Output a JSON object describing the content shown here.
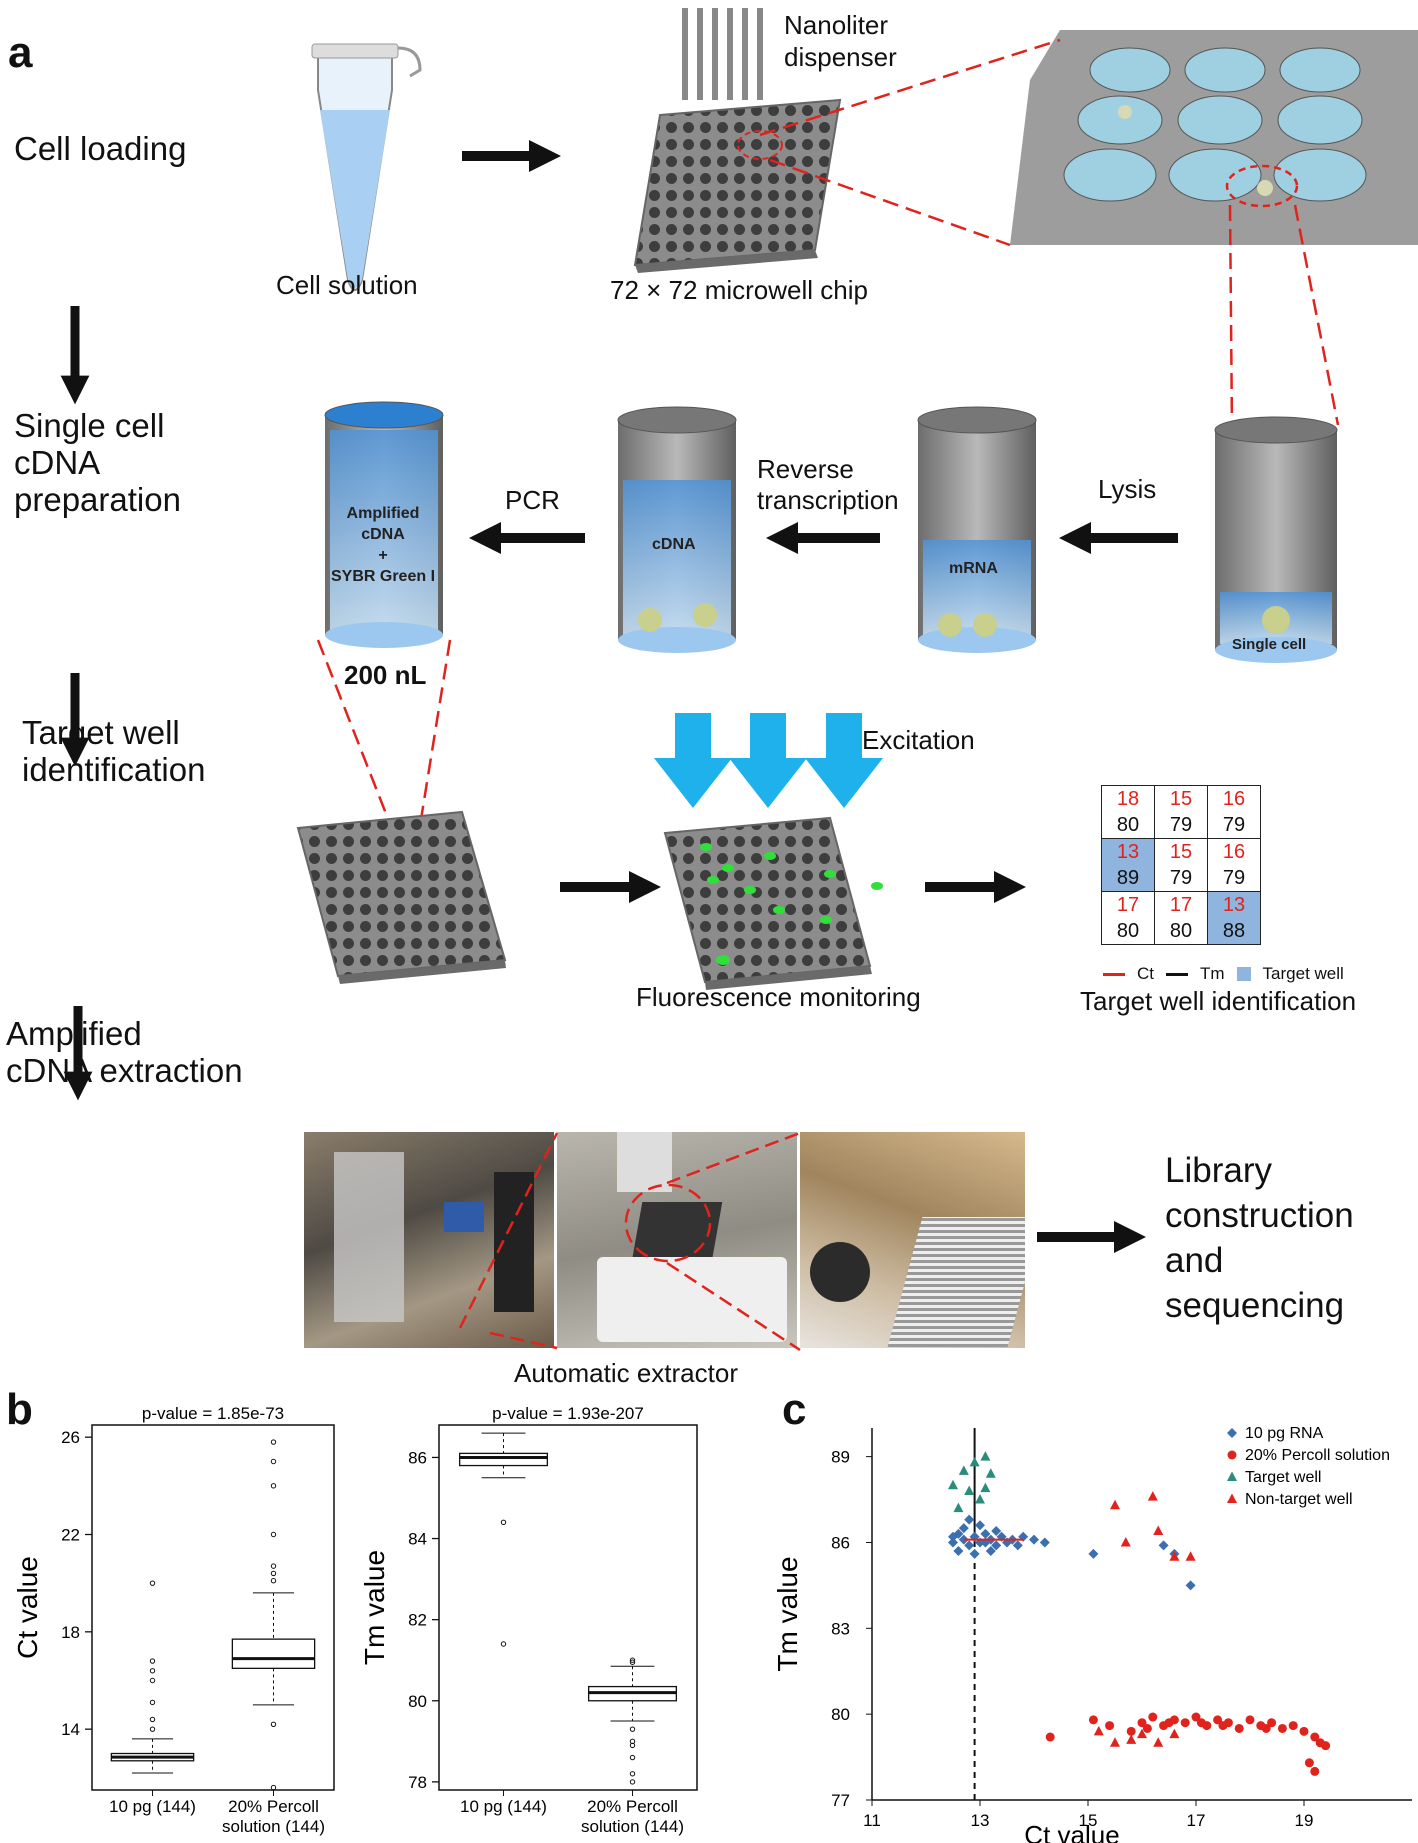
{
  "panels": {
    "a": "a",
    "b": "b",
    "c": "c"
  },
  "steps": {
    "cell_loading": "Cell loading",
    "single_cell_l1": "Single cell",
    "single_cell_l2": "cDNA",
    "single_cell_l3": "preparation",
    "target_well_l1": "Target well",
    "target_well_l2": "identification",
    "extraction_l1": "Amplified",
    "extraction_l2": "cDNA extraction"
  },
  "labels": {
    "cell_solution": "Cell solution",
    "dispenser_l1": "Nanoliter",
    "dispenser_l2": "dispenser",
    "chip": "72 × 72 microwell chip",
    "pcr": "PCR",
    "rt_l1": "Reverse",
    "rt_l2": "transcription",
    "lysis": "Lysis",
    "amplified_l1": "Amplified",
    "amplified_l2": "cDNA",
    "amplified_l3": "+",
    "amplified_l4": "SYBR Green I",
    "cdna": "cDNA",
    "mrna": "mRNA",
    "single_cell": "Single cell",
    "volume": "200 nL",
    "excitation": "Excitation",
    "fluorescence": "Fluorescence monitoring",
    "target_id": "Target well identification",
    "legend_ct": "Ct",
    "legend_tm": "Tm",
    "legend_target": "Target well",
    "extractor": "Automatic extractor",
    "library_l1": "Library",
    "library_l2": "construction",
    "library_l3": "and",
    "library_l4": "sequencing"
  },
  "well_table": [
    [
      {
        "ct": "18",
        "tm": "80",
        "target": false
      },
      {
        "ct": "15",
        "tm": "79",
        "target": false
      },
      {
        "ct": "16",
        "tm": "79",
        "target": false
      }
    ],
    [
      {
        "ct": "13",
        "tm": "89",
        "target": true
      },
      {
        "ct": "15",
        "tm": "79",
        "target": false
      },
      {
        "ct": "16",
        "tm": "79",
        "target": false
      }
    ],
    [
      {
        "ct": "17",
        "tm": "80",
        "target": false
      },
      {
        "ct": "17",
        "tm": "80",
        "target": false
      },
      {
        "ct": "13",
        "tm": "88",
        "target": true
      }
    ]
  ],
  "colors": {
    "ct": "#e0231c",
    "target": "#8fb4de",
    "arrow_blue": "#1fb1ec",
    "rna": "#3c6fb0",
    "percoll": "#e0231c",
    "target_well": "#2a8c7a",
    "nontarget": "#e0231c"
  },
  "chart_data": [
    {
      "type": "box",
      "title": "p-value = 1.85e-73",
      "ylabel": "Ct value",
      "categories": [
        "10 pg (144)",
        "20% Percoll solution (144)"
      ],
      "category_lines": [
        [
          "10 pg (144)"
        ],
        [
          "20% Percoll",
          "solution (144)"
        ]
      ],
      "ylim": [
        11.5,
        26.5
      ],
      "yticks": [
        14,
        18,
        22,
        26
      ],
      "boxes": [
        {
          "q1": 12.7,
          "median": 12.85,
          "q3": 13.0,
          "whisker_low": 12.2,
          "whisker_high": 13.6,
          "outliers": [
            20.0,
            16.8,
            16.4,
            16.0,
            15.1,
            14.4,
            14.0
          ]
        },
        {
          "q1": 16.5,
          "median": 16.9,
          "q3": 17.7,
          "whisker_low": 15.0,
          "whisker_high": 19.6,
          "outliers": [
            25.8,
            25.0,
            24.0,
            22.0,
            20.7,
            20.4,
            20.1,
            14.2,
            11.6
          ]
        }
      ]
    },
    {
      "type": "box",
      "title": "p-value = 1.93e-207",
      "ylabel": "Tm value",
      "categories": [
        "10 pg (144)",
        "20% Percoll solution (144)"
      ],
      "category_lines": [
        [
          "10 pg (144)"
        ],
        [
          "20% Percoll",
          "solution (144)"
        ]
      ],
      "ylim": [
        77.8,
        86.8
      ],
      "yticks": [
        78,
        80,
        82,
        84,
        86
      ],
      "boxes": [
        {
          "q1": 85.8,
          "median": 86.0,
          "q3": 86.1,
          "whisker_low": 85.5,
          "whisker_high": 86.6,
          "outliers": [
            84.4,
            81.4
          ]
        },
        {
          "q1": 80.0,
          "median": 80.2,
          "q3": 80.35,
          "whisker_low": 79.5,
          "whisker_high": 80.85,
          "outliers": [
            81.0,
            80.95,
            79.3,
            79.0,
            78.9,
            78.6,
            78.2,
            78.0
          ]
        }
      ]
    },
    {
      "type": "scatter",
      "xlabel": "Ct value",
      "ylabel": "Tm value",
      "xlim": [
        11,
        21
      ],
      "ylim": [
        77,
        90
      ],
      "xticks": [
        11,
        13,
        15,
        17,
        19
      ],
      "yticks": [
        77,
        80,
        83,
        86,
        89
      ],
      "threshold_x": 12.9,
      "series": [
        {
          "name": "10 pg RNA",
          "marker": "diamond",
          "color": "#3c6fb0",
          "points": [
            [
              12.5,
              86.0
            ],
            [
              12.6,
              86.3
            ],
            [
              12.7,
              86.1
            ],
            [
              12.8,
              85.9
            ],
            [
              12.9,
              86.2
            ],
            [
              13.0,
              86.0
            ],
            [
              13.1,
              86.3
            ],
            [
              13.2,
              86.1
            ],
            [
              13.3,
              85.9
            ],
            [
              13.4,
              86.2
            ],
            [
              13.5,
              86.0
            ],
            [
              13.6,
              86.1
            ],
            [
              13.7,
              85.9
            ],
            [
              13.8,
              86.2
            ],
            [
              14.0,
              86.1
            ],
            [
              14.2,
              86.0
            ],
            [
              12.6,
              85.7
            ],
            [
              12.9,
              85.6
            ],
            [
              13.2,
              85.7
            ],
            [
              12.7,
              86.5
            ],
            [
              13.0,
              86.6
            ],
            [
              13.3,
              86.4
            ],
            [
              12.8,
              86.8
            ],
            [
              13.1,
              86.0
            ],
            [
              12.5,
              86.2
            ],
            [
              15.1,
              85.6
            ],
            [
              16.4,
              85.9
            ],
            [
              16.6,
              85.6
            ],
            [
              16.9,
              84.5
            ]
          ]
        },
        {
          "name": "20% Percoll solution",
          "marker": "circle",
          "color": "#e0231c",
          "points": [
            [
              14.3,
              79.2
            ],
            [
              15.1,
              79.8
            ],
            [
              15.4,
              79.6
            ],
            [
              15.8,
              79.4
            ],
            [
              16.0,
              79.7
            ],
            [
              16.2,
              79.9
            ],
            [
              16.4,
              79.6
            ],
            [
              16.6,
              79.8
            ],
            [
              16.8,
              79.7
            ],
            [
              17.0,
              79.9
            ],
            [
              17.2,
              79.6
            ],
            [
              17.4,
              79.8
            ],
            [
              17.6,
              79.7
            ],
            [
              17.8,
              79.5
            ],
            [
              18.0,
              79.8
            ],
            [
              18.2,
              79.6
            ],
            [
              18.4,
              79.7
            ],
            [
              18.6,
              79.5
            ],
            [
              18.8,
              79.6
            ],
            [
              19.0,
              79.4
            ],
            [
              19.2,
              79.2
            ],
            [
              19.3,
              79.0
            ],
            [
              19.4,
              78.9
            ],
            [
              19.1,
              78.3
            ],
            [
              19.2,
              78.0
            ],
            [
              16.1,
              79.5
            ],
            [
              16.5,
              79.7
            ],
            [
              17.1,
              79.7
            ],
            [
              17.5,
              79.6
            ],
            [
              18.3,
              79.5
            ]
          ]
        },
        {
          "name": "Target well",
          "marker": "triangle",
          "color": "#2a8c7a",
          "points": [
            [
              12.5,
              88.0
            ],
            [
              12.7,
              88.5
            ],
            [
              12.9,
              88.8
            ],
            [
              13.1,
              89.0
            ],
            [
              13.2,
              88.4
            ],
            [
              12.8,
              87.8
            ],
            [
              13.0,
              87.5
            ],
            [
              12.6,
              87.2
            ],
            [
              13.1,
              87.9
            ]
          ]
        },
        {
          "name": "Non-target well",
          "marker": "triangle",
          "color": "#e0231c",
          "points": [
            [
              15.5,
              87.3
            ],
            [
              16.2,
              87.6
            ],
            [
              16.3,
              86.4
            ],
            [
              16.6,
              85.5
            ],
            [
              16.9,
              85.5
            ],
            [
              15.7,
              86.0
            ],
            [
              15.2,
              79.4
            ],
            [
              15.5,
              79.0
            ],
            [
              16.0,
              79.3
            ],
            [
              16.3,
              79.0
            ],
            [
              16.6,
              79.3
            ],
            [
              15.8,
              79.1
            ]
          ]
        }
      ]
    }
  ]
}
